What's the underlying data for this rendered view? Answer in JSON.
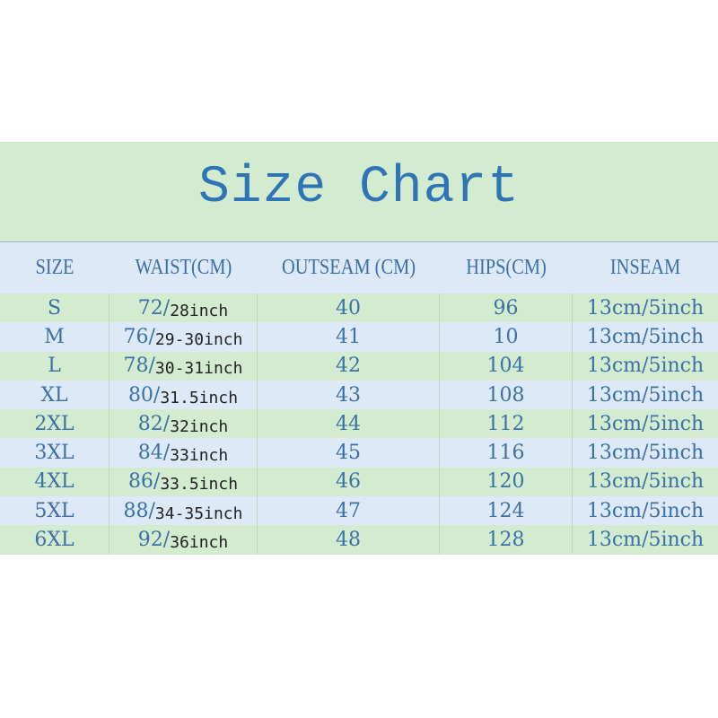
{
  "title": "Size Chart",
  "headers": [
    "SIZE",
    "WAIST(CM)",
    "OUTSEAM (CM)",
    "HIPS(CM)",
    "INSEAM"
  ],
  "rows": [
    {
      "size": "S",
      "waist_cm": "72/",
      "waist_inch": "28inch",
      "outseam": "40",
      "hips": "96",
      "inseam": "13cm/5inch"
    },
    {
      "size": "M",
      "waist_cm": "76/",
      "waist_inch": "29-30inch",
      "outseam": "41",
      "hips": "10",
      "inseam": "13cm/5inch"
    },
    {
      "size": "L",
      "waist_cm": "78/",
      "waist_inch": "30-31inch",
      "outseam": "42",
      "hips": "104",
      "inseam": "13cm/5inch"
    },
    {
      "size": "XL",
      "waist_cm": "80/",
      "waist_inch": "31.5inch",
      "outseam": "43",
      "hips": "108",
      "inseam": "13cm/5inch"
    },
    {
      "size": "2XL",
      "waist_cm": "82/",
      "waist_inch": "32inch",
      "outseam": "44",
      "hips": "112",
      "inseam": "13cm/5inch"
    },
    {
      "size": "3XL",
      "waist_cm": "84/",
      "waist_inch": "33inch",
      "outseam": "45",
      "hips": "116",
      "inseam": "13cm/5inch"
    },
    {
      "size": "4XL",
      "waist_cm": "86/",
      "waist_inch": "33.5inch",
      "outseam": "46",
      "hips": "120",
      "inseam": "13cm/5inch"
    },
    {
      "size": "5XL",
      "waist_cm": "88/",
      "waist_inch": "34-35inch",
      "outseam": "47",
      "hips": "124",
      "inseam": "13cm/5inch"
    },
    {
      "size": "6XL",
      "waist_cm": "92/",
      "waist_inch": "36inch",
      "outseam": "48",
      "hips": "128",
      "inseam": "13cm/5inch"
    }
  ],
  "colors": {
    "title": "#2e75b6",
    "text": "#3d6fa8",
    "green_row": "#d3ecd0",
    "blue_row": "#dde9f7"
  }
}
